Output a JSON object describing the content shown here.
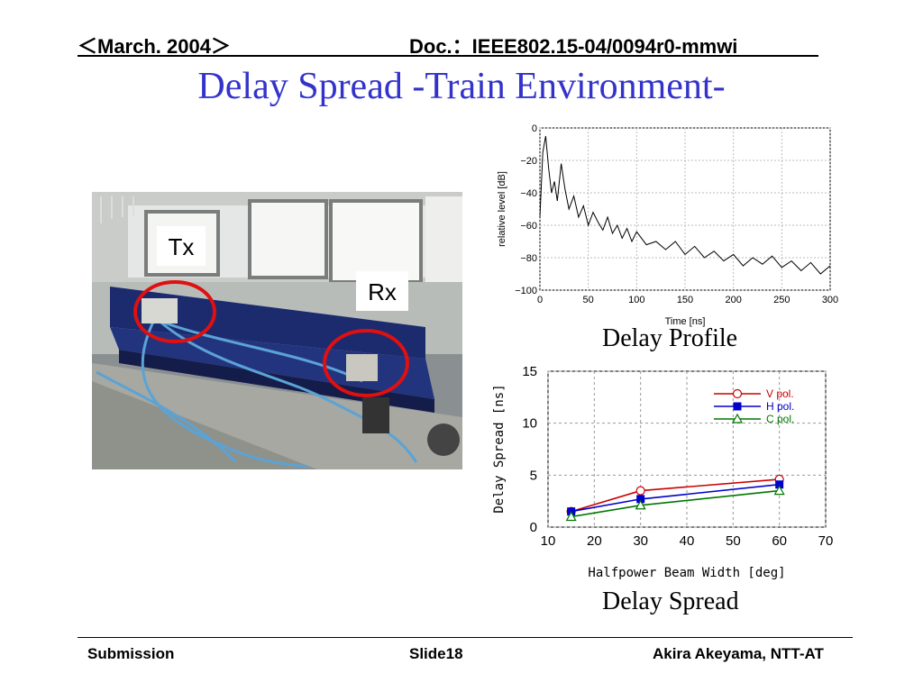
{
  "header": {
    "date": "＜March. 2004＞",
    "doc": "Doc.：IEEE802.15-04/0094r0-mmwi"
  },
  "title": "Delay Spread -Train Environment-",
  "photo": {
    "tx_label": "Tx",
    "rx_label": "Rx"
  },
  "captions": {
    "profile": "Delay Profile",
    "spread": "Delay Spread"
  },
  "footer": {
    "left": "Submission",
    "center": "Slide18",
    "right": "Akira Akeyama, NTT-AT"
  },
  "colors": {
    "title": "#3333cc",
    "v_pol": "#cc0000",
    "h_pol": "#0000cc",
    "c_pol": "#007700"
  },
  "chart_data": [
    {
      "type": "line",
      "title": "",
      "xlabel": "Time [ns]",
      "ylabel": "relative level [dB]",
      "xlim": [
        0,
        300
      ],
      "ylim": [
        -100,
        0
      ],
      "xticks": [
        0,
        50,
        100,
        150,
        200,
        250,
        300
      ],
      "yticks": [
        0,
        -20,
        -40,
        -60,
        -80,
        -100
      ],
      "grid": true,
      "series": [
        {
          "x": [
            0,
            3,
            6,
            9,
            12,
            15,
            18,
            22,
            26,
            30,
            35,
            40,
            45,
            50,
            55,
            60,
            65,
            70,
            75,
            80,
            85,
            90,
            95,
            100,
            110,
            120,
            130,
            140,
            150,
            160,
            170,
            180,
            190,
            200,
            210,
            220,
            230,
            240,
            250,
            260,
            270,
            280,
            290,
            300
          ],
          "y": [
            -55,
            -15,
            -5,
            -25,
            -40,
            -33,
            -45,
            -22,
            -38,
            -50,
            -42,
            -55,
            -48,
            -60,
            -52,
            -58,
            -63,
            -55,
            -65,
            -60,
            -68,
            -62,
            -70,
            -64,
            -72,
            -70,
            -75,
            -70,
            -78,
            -73,
            -80,
            -76,
            -82,
            -78,
            -85,
            -80,
            -84,
            -79,
            -86,
            -82,
            -88,
            -83,
            -90,
            -85
          ]
        }
      ]
    },
    {
      "type": "line",
      "title": "",
      "xlabel": "Halfpower Beam Width [deg]",
      "ylabel": "Delay Spread [ns]",
      "xlim": [
        10,
        70
      ],
      "ylim": [
        0,
        15
      ],
      "xticks": [
        10,
        20,
        30,
        40,
        50,
        60,
        70
      ],
      "yticks": [
        0,
        5,
        10,
        15
      ],
      "grid": true,
      "legend": "top-right",
      "series": [
        {
          "name": "V pol.",
          "x": [
            15,
            30,
            60
          ],
          "y": [
            1.5,
            3.5,
            4.6
          ]
        },
        {
          "name": "H pol.",
          "x": [
            15,
            30,
            60
          ],
          "y": [
            1.5,
            2.7,
            4.1
          ]
        },
        {
          "name": "C pol.",
          "x": [
            15,
            30,
            60
          ],
          "y": [
            1.0,
            2.1,
            3.5
          ]
        }
      ]
    }
  ]
}
